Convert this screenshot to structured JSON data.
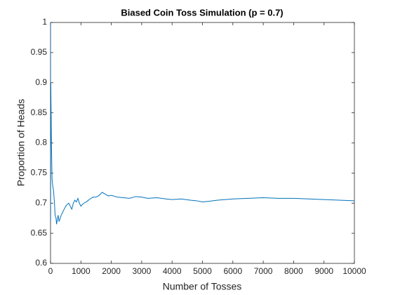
{
  "chart_data": {
    "type": "line",
    "title": "Biased Coin Toss Simulation (p = 0.7)",
    "x_label": "Number of Tosses",
    "y_label": "Proportion of Heads",
    "x": [
      1,
      3,
      5,
      8,
      10,
      15,
      20,
      30,
      40,
      50,
      70,
      100,
      130,
      150,
      180,
      200,
      230,
      250,
      280,
      300,
      350,
      400,
      450,
      500,
      550,
      600,
      650,
      700,
      750,
      800,
      850,
      900,
      950,
      1000,
      1050,
      1100,
      1200,
      1300,
      1400,
      1500,
      1600,
      1700,
      1800,
      1900,
      2000,
      2200,
      2400,
      2600,
      2800,
      3000,
      3200,
      3500,
      3800,
      4000,
      4300,
      4600,
      4800,
      5000,
      5200,
      5500,
      6000,
      6500,
      7000,
      7500,
      8000,
      8500,
      9000,
      9500,
      10000
    ],
    "series": [
      {
        "name": "Proportion of Heads",
        "color": "#0072bd",
        "values": [
          1,
          0.67,
          0.8,
          0.88,
          0.9,
          0.87,
          0.85,
          0.8,
          0.77,
          0.74,
          0.73,
          0.72,
          0.7,
          0.68,
          0.675,
          0.665,
          0.675,
          0.68,
          0.67,
          0.672,
          0.68,
          0.685,
          0.69,
          0.695,
          0.698,
          0.7,
          0.695,
          0.69,
          0.7,
          0.705,
          0.702,
          0.708,
          0.7,
          0.695,
          0.698,
          0.7,
          0.703,
          0.707,
          0.71,
          0.71,
          0.713,
          0.718,
          0.715,
          0.712,
          0.713,
          0.71,
          0.709,
          0.708,
          0.711,
          0.71,
          0.708,
          0.709,
          0.707,
          0.706,
          0.707,
          0.705,
          0.704,
          0.702,
          0.703,
          0.705,
          0.707,
          0.708,
          0.709,
          0.708,
          0.708,
          0.707,
          0.706,
          0.705,
          0.704
        ]
      }
    ],
    "xlim": [
      0,
      10000
    ],
    "xticks": [
      0,
      1000,
      2000,
      3000,
      4000,
      5000,
      6000,
      7000,
      8000,
      9000,
      10000
    ],
    "ylim": [
      0.6,
      1
    ],
    "yticks": [
      0.6,
      0.65,
      0.7,
      0.75,
      0.8,
      0.85,
      0.9,
      0.95,
      1
    ],
    "grid": false
  }
}
